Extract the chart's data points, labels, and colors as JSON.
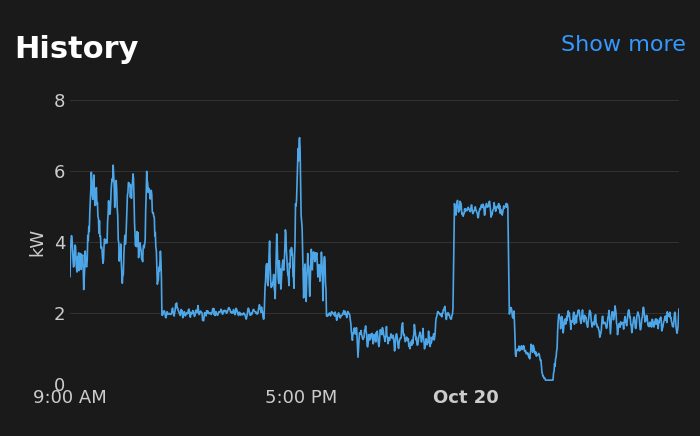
{
  "background_color": "#1a1a1a",
  "plot_bg_color": "#1a1a1a",
  "line_color": "#4da6e8",
  "grid_color": "#333333",
  "title": "History",
  "show_more": "Show more",
  "title_color": "#ffffff",
  "show_more_color": "#3399ff",
  "ylabel": "kW",
  "ylabel_color": "#cccccc",
  "tick_color": "#cccccc",
  "ylim": [
    0,
    8
  ],
  "yticks": [
    0,
    2,
    4,
    6,
    8
  ],
  "xtick_labels": [
    "9:00 AM",
    "5:00 PM",
    "Oct 20"
  ],
  "title_fontsize": 22,
  "show_more_fontsize": 16,
  "axis_fontsize": 13,
  "line_width": 1.2,
  "x_positions": [
    0.0,
    0.38,
    0.65
  ],
  "seed": 42
}
